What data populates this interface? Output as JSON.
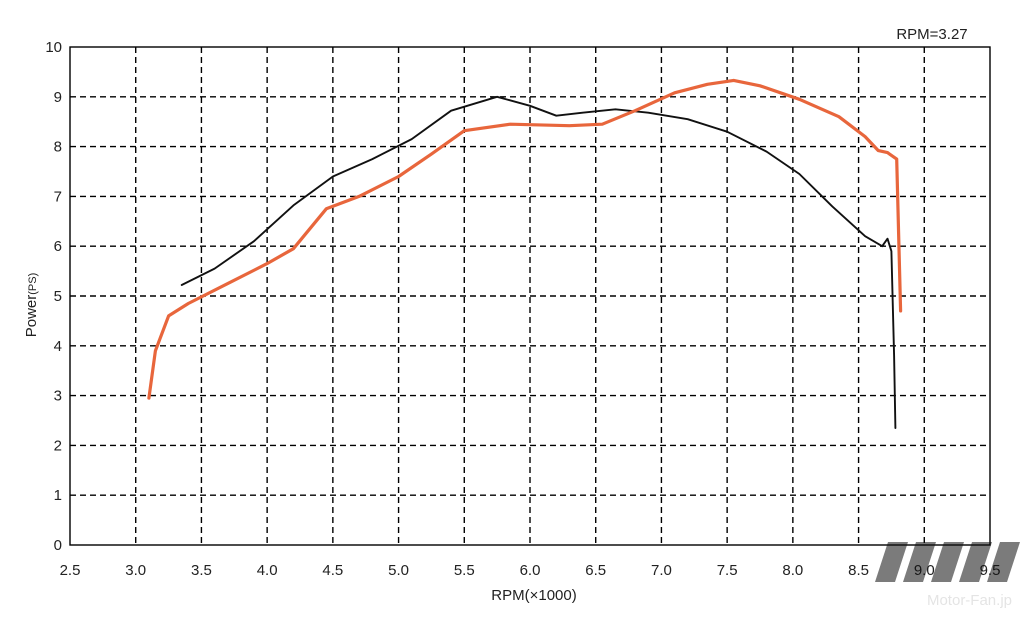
{
  "chart_data": {
    "type": "line",
    "annotation": "RPM=3.27",
    "xlabel": "RPM(×1000)",
    "ylabel": "Power",
    "ylabel_unit": "(PS)",
    "xlim": [
      2.5,
      9.5
    ],
    "ylim": [
      0,
      10
    ],
    "x_ticks": [
      "2.5",
      "3.0",
      "3.5",
      "4.0",
      "4.5",
      "5.0",
      "5.5",
      "6.0",
      "6.5",
      "7.0",
      "7.5",
      "8.0",
      "8.5",
      "9.0",
      "9.5"
    ],
    "y_ticks": [
      "0",
      "1",
      "2",
      "3",
      "4",
      "5",
      "6",
      "7",
      "8",
      "9",
      "10"
    ],
    "grid": true,
    "legend": "none",
    "series": [
      {
        "color": "#111111",
        "points": [
          [
            3.35,
            5.22
          ],
          [
            3.6,
            5.55
          ],
          [
            3.9,
            6.1
          ],
          [
            4.2,
            6.82
          ],
          [
            4.5,
            7.4
          ],
          [
            4.8,
            7.75
          ],
          [
            5.1,
            8.15
          ],
          [
            5.4,
            8.72
          ],
          [
            5.75,
            9.0
          ],
          [
            6.0,
            8.82
          ],
          [
            6.2,
            8.62
          ],
          [
            6.4,
            8.68
          ],
          [
            6.65,
            8.75
          ],
          [
            6.9,
            8.68
          ],
          [
            7.2,
            8.55
          ],
          [
            7.5,
            8.3
          ],
          [
            7.8,
            7.9
          ],
          [
            8.05,
            7.45
          ],
          [
            8.3,
            6.8
          ],
          [
            8.55,
            6.2
          ],
          [
            8.68,
            6.0
          ],
          [
            8.72,
            6.15
          ],
          [
            8.75,
            5.9
          ],
          [
            8.77,
            3.8
          ],
          [
            8.78,
            2.35
          ]
        ]
      },
      {
        "color": "#e8663c",
        "points": [
          [
            3.1,
            2.95
          ],
          [
            3.15,
            3.9
          ],
          [
            3.25,
            4.6
          ],
          [
            3.4,
            4.85
          ],
          [
            3.7,
            5.25
          ],
          [
            4.0,
            5.65
          ],
          [
            4.2,
            5.95
          ],
          [
            4.45,
            6.75
          ],
          [
            4.7,
            7.0
          ],
          [
            5.0,
            7.4
          ],
          [
            5.25,
            7.85
          ],
          [
            5.5,
            8.32
          ],
          [
            5.85,
            8.45
          ],
          [
            6.3,
            8.42
          ],
          [
            6.55,
            8.45
          ],
          [
            6.8,
            8.72
          ],
          [
            7.1,
            9.08
          ],
          [
            7.35,
            9.25
          ],
          [
            7.55,
            9.33
          ],
          [
            7.75,
            9.22
          ],
          [
            8.05,
            8.95
          ],
          [
            8.35,
            8.6
          ],
          [
            8.55,
            8.2
          ],
          [
            8.65,
            7.92
          ],
          [
            8.72,
            7.88
          ],
          [
            8.79,
            7.75
          ],
          [
            8.82,
            4.7
          ]
        ]
      }
    ]
  },
  "watermark": {
    "brand": "Motor-Fan.jp"
  }
}
